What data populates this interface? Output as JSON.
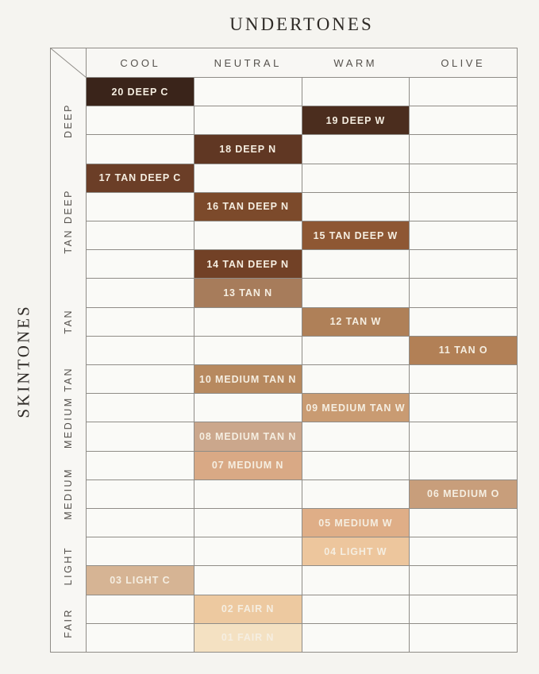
{
  "chart_data": {
    "type": "heatmap",
    "title": "UNDERTONES",
    "x_axis_label": "UNDERTONES",
    "y_axis_label": "SKINTONES",
    "columns": [
      "COOL",
      "NEUTRAL",
      "WARM",
      "OLIVE"
    ],
    "row_groups": [
      {
        "label": "DEEP",
        "rows": 3
      },
      {
        "label": "TAN DEEP",
        "rows": 4
      },
      {
        "label": "TAN",
        "rows": 3
      },
      {
        "label": "MEDIUM TAN",
        "rows": 3
      },
      {
        "label": "MEDIUM",
        "rows": 3
      },
      {
        "label": "LIGHT",
        "rows": 2
      },
      {
        "label": "FAIR",
        "rows": 2
      }
    ],
    "shades": [
      {
        "row": 1,
        "label": "20 DEEP C",
        "skintone": "DEEP",
        "undertone": "COOL",
        "color": "#3a241a"
      },
      {
        "row": 2,
        "label": "19 DEEP W",
        "skintone": "DEEP",
        "undertone": "WARM",
        "color": "#4b2d1e"
      },
      {
        "row": 3,
        "label": "18 DEEP N",
        "skintone": "DEEP",
        "undertone": "NEUTRAL",
        "color": "#603723"
      },
      {
        "row": 4,
        "label": "17 TAN DEEP C",
        "skintone": "TAN DEEP",
        "undertone": "COOL",
        "color": "#6b3e27"
      },
      {
        "row": 5,
        "label": "16 TAN DEEP N",
        "skintone": "TAN DEEP",
        "undertone": "NEUTRAL",
        "color": "#7c4a2b"
      },
      {
        "row": 6,
        "label": "15 TAN DEEP W",
        "skintone": "TAN DEEP",
        "undertone": "WARM",
        "color": "#8e5733"
      },
      {
        "row": 7,
        "label": "14 TAN DEEP N",
        "skintone": "TAN DEEP",
        "undertone": "NEUTRAL",
        "color": "#724126"
      },
      {
        "row": 8,
        "label": "13 TAN N",
        "skintone": "TAN",
        "undertone": "NEUTRAL",
        "color": "#a77c5b"
      },
      {
        "row": 9,
        "label": "12 TAN W",
        "skintone": "TAN",
        "undertone": "WARM",
        "color": "#af8058"
      },
      {
        "row": 10,
        "label": "11 TAN O",
        "skintone": "TAN",
        "undertone": "OLIVE",
        "color": "#b28056"
      },
      {
        "row": 11,
        "label": "10 MEDIUM TAN N",
        "skintone": "MEDIUM TAN",
        "undertone": "NEUTRAL",
        "color": "#b7895f"
      },
      {
        "row": 12,
        "label": "09 MEDIUM TAN W",
        "skintone": "MEDIUM TAN",
        "undertone": "WARM",
        "color": "#c99b72"
      },
      {
        "row": 13,
        "label": "08 MEDIUM TAN N",
        "skintone": "MEDIUM TAN",
        "undertone": "NEUTRAL",
        "color": "#cba78c"
      },
      {
        "row": 14,
        "label": "07 MEDIUM N",
        "skintone": "MEDIUM",
        "undertone": "NEUTRAL",
        "color": "#d9a985"
      },
      {
        "row": 15,
        "label": "06 MEDIUM O",
        "skintone": "MEDIUM",
        "undertone": "OLIVE",
        "color": "#c89e7b"
      },
      {
        "row": 16,
        "label": "05 MEDIUM W",
        "skintone": "MEDIUM",
        "undertone": "WARM",
        "color": "#dfae87"
      },
      {
        "row": 17,
        "label": "04 LIGHT W",
        "skintone": "LIGHT",
        "undertone": "WARM",
        "color": "#edc69d"
      },
      {
        "row": 18,
        "label": "03 LIGHT C",
        "skintone": "LIGHT",
        "undertone": "COOL",
        "color": "#d6b494"
      },
      {
        "row": 19,
        "label": "02 FAIR N",
        "skintone": "FAIR",
        "undertone": "NEUTRAL",
        "color": "#edc9a0"
      },
      {
        "row": 20,
        "label": "01 FAIR N",
        "skintone": "FAIR",
        "undertone": "NEUTRAL",
        "color": "#f4e1c2"
      }
    ],
    "colors": {
      "page_background": "#f5f4f0",
      "cell_background": "#fafaf7",
      "grid_line": "#8f8c87",
      "cell_text": "#f5eee1",
      "heading_text": "#2f2b27",
      "axis_text": "#55514c"
    },
    "layout": {
      "legend": "none",
      "grid": true
    }
  }
}
